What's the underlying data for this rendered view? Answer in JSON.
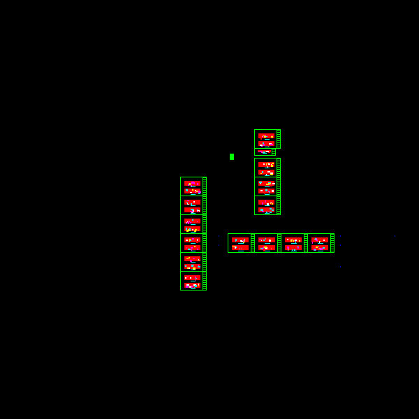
{
  "colors": {
    "background": "#000000",
    "frame": "#00ff00",
    "palette": [
      "#ff0000",
      "#ffff00",
      "#ff00ff",
      "#00ffff",
      "#ffffff",
      "#0000ff",
      "#00ff00"
    ]
  },
  "sheet_groups": [
    {
      "name": "left-column",
      "sheets": 6
    },
    {
      "name": "top-right-column",
      "sheets": 5
    },
    {
      "name": "bottom-row",
      "sheets": 4
    }
  ]
}
